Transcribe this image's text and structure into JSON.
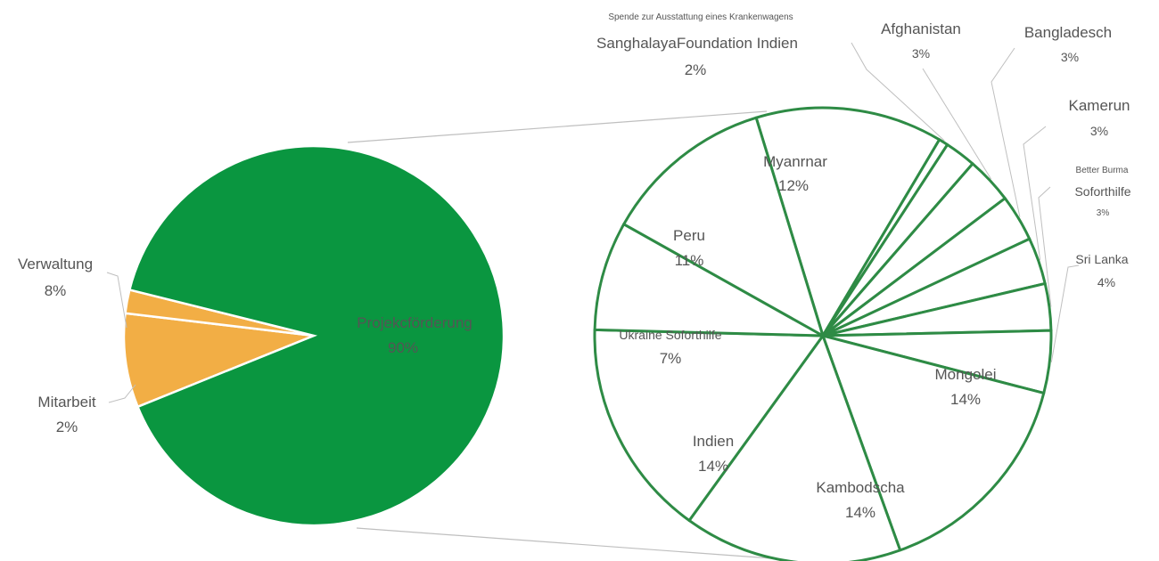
{
  "colors": {
    "main_green": "#0a9640",
    "main_orange": "#f2ae45",
    "detail_stroke": "#2e8b45",
    "detail_fill": "#ffffff",
    "leader": "#bfbfbf",
    "text": "#555555"
  },
  "chart_data": {
    "type": "pie",
    "subtype": "bar-of-pie (pie of pie)",
    "main": {
      "slices": [
        {
          "label": "Projekcförderung",
          "value": 90,
          "value_label": "90%"
        },
        {
          "label": "Verwaltung",
          "value": 8,
          "value_label": "8%"
        },
        {
          "label": "Mitarbeit",
          "value": 2,
          "value_label": "2%"
        }
      ]
    },
    "detail": {
      "expands": "Projekcförderung",
      "slices": [
        {
          "label": "Myanrnar",
          "value": 12,
          "value_label": "12%"
        },
        {
          "label": "Spende zur Ausstattung eines Krankenwagens",
          "value": 0.6,
          "value_label": ""
        },
        {
          "label": "SanghalayaFoundation Indien",
          "value": 2,
          "value_label": "2%"
        },
        {
          "label": "Afghanistan",
          "value": 3,
          "value_label": "3%"
        },
        {
          "label": "Bangladesch",
          "value": 3,
          "value_label": "3%"
        },
        {
          "label": "Kamerun",
          "value": 3,
          "value_label": "3%"
        },
        {
          "label": "Better Burma Soforthilfe",
          "value": 3,
          "value_label": "3%"
        },
        {
          "label": "Sri Lanka",
          "value": 4,
          "value_label": "4%"
        },
        {
          "label": "Mongolei",
          "value": 14,
          "value_label": "14%"
        },
        {
          "label": "Kambodscha",
          "value": 14,
          "value_label": "14%"
        },
        {
          "label": "Indien",
          "value": 14,
          "value_label": "14%"
        },
        {
          "label": "Ukraine Soforthilfe",
          "value": 7,
          "value_label": "7%"
        },
        {
          "label": "Peru",
          "value": 11,
          "value_label": "11%"
        }
      ]
    },
    "legend": "none"
  }
}
